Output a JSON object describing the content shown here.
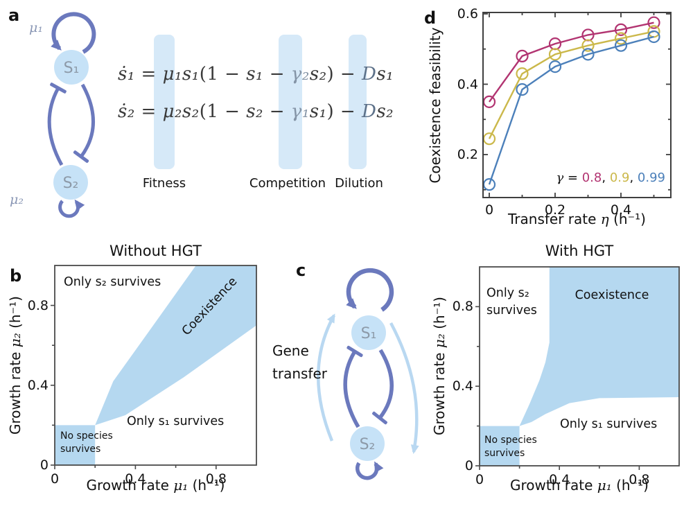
{
  "colors": {
    "region_blue": "#b5d8f0",
    "bar_blue": "#d6e9f8",
    "node_blue": "#c6e2f7",
    "arrow_dark": "#6b79bd",
    "arrow_light": "#b9d8f1",
    "node_text": "#8d9aa8",
    "mu_label": "#8a97b5",
    "gamma_text": "#8494a6",
    "dilution_text": "#5d7189",
    "eq_text": "#3a3a3a",
    "frame": "#4a4a4a",
    "text": "#111111",
    "series_magenta": "#b23471",
    "series_yellow": "#cbb84a",
    "series_blue": "#4c80ba"
  },
  "panel_a": {
    "letter": "a",
    "mu1": "μ₁",
    "mu2": "μ₂",
    "s1": "S₁",
    "s2": "S₂",
    "equations": {
      "eq1": [
        {
          "t": "ṡ₁",
          "c": "v"
        },
        {
          "t": " = ",
          "c": "p"
        },
        {
          "t": "μ₁s₁",
          "c": "v"
        },
        {
          "t": "(1 − ",
          "c": "p"
        },
        {
          "t": "s₁",
          "c": "v"
        },
        {
          "t": " − ",
          "c": "p"
        },
        {
          "t": "γ₂",
          "c": "g"
        },
        {
          "t": "s₂",
          "c": "v"
        },
        {
          "t": ") − ",
          "c": "p"
        },
        {
          "t": "D",
          "c": "d"
        },
        {
          "t": "s₁",
          "c": "v"
        }
      ],
      "eq2": [
        {
          "t": "ṡ₂",
          "c": "v"
        },
        {
          "t": " = ",
          "c": "p"
        },
        {
          "t": "μ₂s₂",
          "c": "v"
        },
        {
          "t": "(1 − ",
          "c": "p"
        },
        {
          "t": "s₂",
          "c": "v"
        },
        {
          "t": " − ",
          "c": "p"
        },
        {
          "t": "γ₁",
          "c": "g"
        },
        {
          "t": "s₁",
          "c": "v"
        },
        {
          "t": ") − ",
          "c": "p"
        },
        {
          "t": "D",
          "c": "d"
        },
        {
          "t": "s₂",
          "c": "v"
        }
      ]
    },
    "bar_labels": {
      "fitness": "Fitness",
      "competition": "Competition",
      "dilution": "Dilution"
    }
  },
  "panel_b": {
    "letter": "b",
    "title": "Without HGT",
    "xlabel_parts": [
      "Growth rate ",
      "μ₁",
      " (h⁻¹)"
    ],
    "ylabel_parts": [
      "Growth rate ",
      "μ₂",
      " (h⁻¹)"
    ],
    "regions": {
      "coexistence_label": "Coexistence",
      "only_s2": "Only s₂ survives",
      "only_s1": "Only s₁ survives",
      "no_species": [
        "No species",
        "survives"
      ]
    }
  },
  "panel_c": {
    "letter": "c",
    "gene_transfer": [
      "Gene",
      "transfer"
    ],
    "s1": "S₁",
    "s2": "S₂",
    "title": "With HGT",
    "xlabel_parts": [
      "Growth rate ",
      "μ₁",
      " (h⁻¹)"
    ],
    "ylabel_parts": [
      "Growth rate ",
      "μ₂",
      " (h⁻¹)"
    ],
    "regions": {
      "coexistence_label": "Coexistence",
      "only_s2": [
        "Only s₂",
        "survives"
      ],
      "only_s1": "Only s₁ survives",
      "no_species": [
        "No species",
        "survives"
      ]
    }
  },
  "panel_d": {
    "letter": "d",
    "ylabel": "Coexistence feasibility",
    "xlabel_parts": [
      "Transfer rate ",
      "η",
      " (h⁻¹)"
    ],
    "legend": {
      "prefix": "γ",
      "equals": " = ",
      "separator": ", ",
      "items": [
        {
          "label": "0.8",
          "color": "#b23471"
        },
        {
          "label": "0.9",
          "color": "#cbb84a"
        },
        {
          "label": "0.99",
          "color": "#4c80ba"
        }
      ]
    }
  },
  "chart_data": [
    {
      "panel": "d",
      "type": "line",
      "title": "",
      "xlabel": "Transfer rate η (h⁻¹)",
      "ylabel": "Coexistence feasibility",
      "x": [
        0,
        0.1,
        0.2,
        0.3,
        0.4,
        0.5
      ],
      "series": [
        {
          "name": "γ = 0.8",
          "color": "#b23471",
          "values": [
            0.35,
            0.48,
            0.515,
            0.54,
            0.555,
            0.575
          ]
        },
        {
          "name": "γ = 0.9",
          "color": "#cbb84a",
          "values": [
            0.245,
            0.43,
            0.485,
            0.51,
            0.53,
            0.55
          ]
        },
        {
          "name": "γ = 0.99",
          "color": "#4c80ba",
          "values": [
            0.115,
            0.385,
            0.45,
            0.485,
            0.51,
            0.535
          ]
        }
      ],
      "marker": "open-circle",
      "xlim": [
        -0.02,
        0.552
      ],
      "ylim": [
        0.078,
        0.6
      ],
      "xticks": {
        "major": [
          0,
          0.2,
          0.4
        ],
        "minor": [
          0.1,
          0.3,
          0.5
        ],
        "labels": [
          "0",
          "0.2",
          "0.4"
        ]
      },
      "yticks": {
        "major": [
          0.2,
          0.4,
          0.6
        ],
        "minor": [
          0.1,
          0.3,
          0.5
        ],
        "labels": [
          "0.2",
          "0.4",
          "0.6"
        ]
      },
      "grid": false,
      "legend_position": "lower-right-inside"
    },
    {
      "panel": "b",
      "type": "area",
      "title": "Without HGT",
      "xlabel": "Growth rate μ₁ (h⁻¹)",
      "ylabel": "Growth rate μ₂ (h⁻¹)",
      "xlim": [
        0,
        1
      ],
      "ylim": [
        0,
        1
      ],
      "xticks": {
        "major": [
          0,
          0.4,
          0.8
        ],
        "minor": [
          0.2,
          0.6
        ],
        "labels": [
          "0",
          "0.4",
          "0.8"
        ]
      },
      "yticks": {
        "major": [
          0,
          0.4,
          0.8
        ],
        "minor": [
          0.2,
          0.6
        ],
        "labels": [
          "0",
          "0.4",
          "0.8"
        ]
      },
      "regions": [
        {
          "name": "Coexistence",
          "polygon": [
            [
              0.2,
              0.2
            ],
            [
              0.29,
              0.42
            ],
            [
              0.46,
              0.66
            ],
            [
              0.7,
              1.0
            ],
            [
              1.0,
              1.0
            ],
            [
              1.0,
              0.7
            ],
            [
              0.64,
              0.44
            ],
            [
              0.35,
              0.25
            ]
          ]
        },
        {
          "name": "No species survives",
          "polygon": [
            [
              0,
              0
            ],
            [
              0.2,
              0
            ],
            [
              0.2,
              0.2
            ],
            [
              0,
              0.2
            ]
          ]
        }
      ]
    },
    {
      "panel": "c",
      "type": "area",
      "title": "With HGT",
      "xlabel": "Growth rate μ₁ (h⁻¹)",
      "ylabel": "Growth rate μ₂ (h⁻¹)",
      "xlim": [
        0,
        1
      ],
      "ylim": [
        0,
        1
      ],
      "xticks": {
        "major": [
          0,
          0.4,
          0.8
        ],
        "minor": [
          0.2,
          0.6
        ],
        "labels": [
          "0",
          "0.4",
          "0.8"
        ]
      },
      "yticks": {
        "major": [
          0,
          0.4,
          0.8
        ],
        "minor": [
          0.2,
          0.6
        ],
        "labels": [
          "0",
          "0.4",
          "0.8"
        ]
      },
      "regions": [
        {
          "name": "Coexistence",
          "polygon": [
            [
              0.2,
              0.2
            ],
            [
              0.25,
              0.31
            ],
            [
              0.3,
              0.43
            ],
            [
              0.33,
              0.52
            ],
            [
              0.35,
              0.62
            ],
            [
              0.35,
              1.0
            ],
            [
              1.0,
              1.0
            ],
            [
              1.0,
              0.345
            ],
            [
              0.6,
              0.34
            ],
            [
              0.45,
              0.315
            ],
            [
              0.33,
              0.26
            ],
            [
              0.26,
              0.22
            ]
          ]
        },
        {
          "name": "No species survives",
          "polygon": [
            [
              0,
              0
            ],
            [
              0.2,
              0
            ],
            [
              0.2,
              0.2
            ],
            [
              0,
              0.2
            ]
          ]
        }
      ]
    }
  ]
}
